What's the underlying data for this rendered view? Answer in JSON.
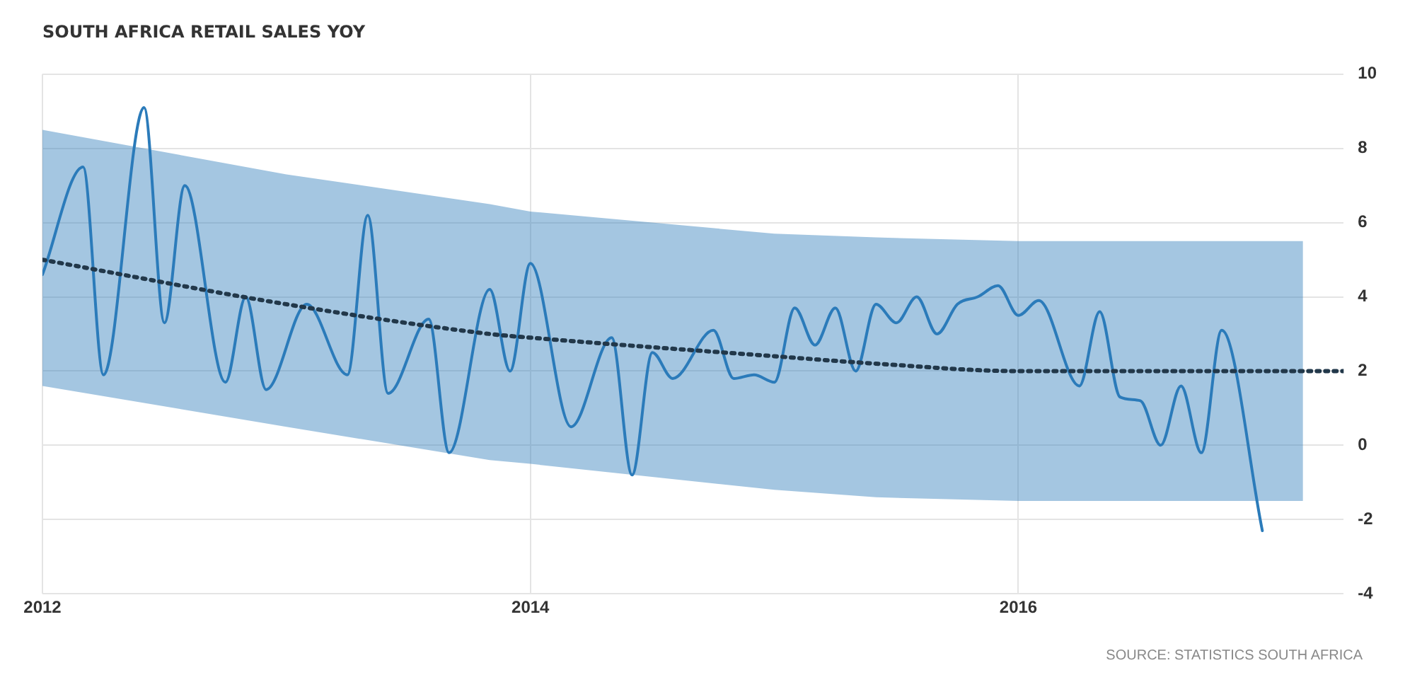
{
  "chart_data": {
    "type": "line",
    "title": "SOUTH AFRICA RETAIL SALES YOY",
    "series": [
      {
        "color": "#2b7bba",
        "line_style": "solid",
        "x": [
          "2012-01",
          "2012-03",
          "2012-04",
          "2012-06",
          "2012-07",
          "2012-08",
          "2012-10",
          "2012-11",
          "2012-12",
          "2013-02",
          "2013-04",
          "2013-05",
          "2013-06",
          "2013-08",
          "2013-09",
          "2013-11",
          "2013-12",
          "2014-01",
          "2014-03",
          "2014-05",
          "2014-06",
          "2014-07",
          "2014-08",
          "2014-10",
          "2014-11",
          "2014-12",
          "2015-01",
          "2015-02",
          "2015-03",
          "2015-04",
          "2015-05",
          "2015-06",
          "2015-07",
          "2015-08",
          "2015-09",
          "2015-10",
          "2015-11",
          "2015-12",
          "2016-01",
          "2016-02",
          "2016-04",
          "2016-05",
          "2016-06",
          "2016-07",
          "2016-08",
          "2016-09",
          "2016-10",
          "2016-11",
          "2017-01"
        ],
        "values": [
          4.6,
          7.5,
          1.9,
          9.1,
          3.3,
          7.0,
          1.7,
          4.0,
          1.5,
          3.8,
          1.9,
          6.2,
          1.4,
          3.4,
          -0.2,
          4.2,
          2.0,
          4.9,
          0.5,
          2.9,
          -0.8,
          2.5,
          1.8,
          3.1,
          1.8,
          1.9,
          1.7,
          3.7,
          2.7,
          3.7,
          2.0,
          3.8,
          3.3,
          4.0,
          3.0,
          3.8,
          4.0,
          4.3,
          3.5,
          3.9,
          1.6,
          3.6,
          1.3,
          1.2,
          0.0,
          1.6,
          -0.2,
          3.1,
          -2.3
        ]
      },
      {
        "type": "line",
        "color": "#22384a",
        "line_style": "dotted",
        "x": [
          "2012-01",
          "2013-01",
          "2013-11",
          "2014-01",
          "2015-01",
          "2015-06",
          "2016-01",
          "2017-03",
          "2017-05"
        ],
        "values": [
          5.0,
          3.8,
          3.0,
          2.9,
          2.4,
          2.2,
          2.0,
          2.0,
          2.0
        ],
        "lower": [
          1.6,
          0.5,
          -0.4,
          -0.5,
          -1.2,
          -1.4,
          -1.5,
          -1.5,
          null
        ],
        "upper": [
          8.5,
          7.3,
          6.5,
          6.3,
          5.7,
          5.6,
          5.5,
          5.5,
          null
        ]
      }
    ],
    "xlim": [
      "2012-01",
      "2017-05"
    ],
    "xticks": [
      {
        "value": "2012-01",
        "label": "2012"
      },
      {
        "value": "2014-01",
        "label": "2014"
      },
      {
        "value": "2016-01",
        "label": "2016"
      }
    ],
    "ylim": [
      -4,
      10
    ],
    "yticks": [
      -4,
      -2,
      0,
      2,
      4,
      6,
      8,
      10
    ],
    "grid": true,
    "legend": false,
    "marker": "none",
    "annotations": [
      "SOURCE: STATISTICS SOUTH AFRICA"
    ]
  }
}
